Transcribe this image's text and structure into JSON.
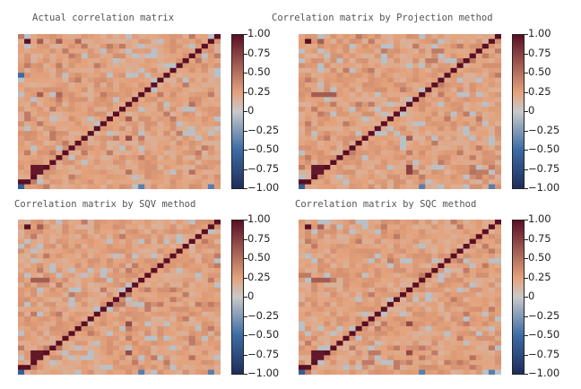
{
  "chart_data": [
    {
      "type": "heatmap",
      "title": "Actual correlation matrix",
      "n": 32,
      "colorbar_range": [
        -1.0,
        1.0
      ],
      "colorbar_ticks": [
        "1.00",
        "0.75",
        "0.50",
        "0.25",
        "0",
        "−0.25",
        "−0.50",
        "−0.75",
        "−1.00"
      ],
      "highlights": [
        {
          "r": 31,
          "c": 0,
          "v": -0.6
        },
        {
          "r": 30,
          "c": 0,
          "v": 1.0
        },
        {
          "r": 1,
          "c": 1,
          "v": 1.0
        },
        {
          "r": 28,
          "c": 2,
          "v": 0.95
        },
        {
          "r": 28,
          "c": 3,
          "v": 0.95
        },
        {
          "r": 27,
          "c": 2,
          "v": 0.95
        },
        {
          "r": 27,
          "c": 3,
          "v": 0.95
        },
        {
          "r": 1,
          "c": 3,
          "v": 0.6
        },
        {
          "r": 1,
          "c": 6,
          "v": 0.6
        },
        {
          "r": 1,
          "c": 9,
          "v": 0.55
        },
        {
          "r": 12,
          "c": 3,
          "v": 0.6
        },
        {
          "r": 12,
          "c": 6,
          "v": 0.55
        },
        {
          "r": 8,
          "c": 0,
          "v": -0.5
        },
        {
          "r": 21,
          "c": 17,
          "v": 0.7
        },
        {
          "r": 17,
          "c": 17,
          "v": 0.6
        },
        {
          "r": 28,
          "c": 17,
          "v": 0.5
        },
        {
          "r": 14,
          "c": 27,
          "v": 0.5
        },
        {
          "r": 28,
          "c": 27,
          "v": 0.5
        },
        {
          "r": 31,
          "c": 19,
          "v": -0.4
        },
        {
          "r": 31,
          "c": 30,
          "v": -0.4
        }
      ]
    },
    {
      "type": "heatmap",
      "title": "Correlation matrix by Projection method",
      "n": 32,
      "colorbar_range": [
        -1.0,
        1.0
      ],
      "colorbar_ticks": [
        "1.00",
        "0.75",
        "0.50",
        "0.25",
        "0",
        "−0.25",
        "−0.50",
        "−0.75",
        "−1.00"
      ],
      "highlights": [
        {
          "r": 31,
          "c": 0,
          "v": -0.6
        },
        {
          "r": 30,
          "c": 0,
          "v": 1.0
        },
        {
          "r": 1,
          "c": 1,
          "v": 1.0
        },
        {
          "r": 28,
          "c": 2,
          "v": 0.95
        },
        {
          "r": 28,
          "c": 3,
          "v": 0.95
        },
        {
          "r": 27,
          "c": 2,
          "v": 0.95
        },
        {
          "r": 27,
          "c": 3,
          "v": 0.95
        },
        {
          "r": 12,
          "c": 2,
          "v": 0.6
        },
        {
          "r": 12,
          "c": 3,
          "v": 0.6
        },
        {
          "r": 12,
          "c": 4,
          "v": 0.6
        },
        {
          "r": 12,
          "c": 5,
          "v": 0.6
        },
        {
          "r": 1,
          "c": 3,
          "v": 0.6
        },
        {
          "r": 27,
          "c": 17,
          "v": 0.75
        },
        {
          "r": 28,
          "c": 17,
          "v": 0.75
        },
        {
          "r": 21,
          "c": 17,
          "v": 0.6
        },
        {
          "r": 28,
          "c": 27,
          "v": 0.5
        },
        {
          "r": 31,
          "c": 19,
          "v": -0.4
        },
        {
          "r": 31,
          "c": 30,
          "v": -0.4
        }
      ]
    },
    {
      "type": "heatmap",
      "title": "Correlation matrix by SQV method",
      "n": 32,
      "colorbar_range": [
        -1.0,
        1.0
      ],
      "colorbar_ticks": [
        "1.00",
        "0.75",
        "0.50",
        "0.25",
        "0",
        "−0.25",
        "−0.50",
        "−0.75",
        "−1.00"
      ],
      "highlights": [
        {
          "r": 31,
          "c": 0,
          "v": -0.6
        },
        {
          "r": 30,
          "c": 0,
          "v": 1.0
        },
        {
          "r": 1,
          "c": 1,
          "v": 1.0
        },
        {
          "r": 28,
          "c": 2,
          "v": 0.95
        },
        {
          "r": 28,
          "c": 3,
          "v": 0.95
        },
        {
          "r": 27,
          "c": 2,
          "v": 0.95
        },
        {
          "r": 27,
          "c": 3,
          "v": 0.95
        },
        {
          "r": 12,
          "c": 2,
          "v": 0.6
        },
        {
          "r": 12,
          "c": 3,
          "v": 0.6
        },
        {
          "r": 12,
          "c": 4,
          "v": 0.6
        },
        {
          "r": 1,
          "c": 3,
          "v": 0.6
        },
        {
          "r": 21,
          "c": 17,
          "v": 0.7
        },
        {
          "r": 27,
          "c": 17,
          "v": 0.7
        },
        {
          "r": 28,
          "c": 27,
          "v": 0.5
        },
        {
          "r": 31,
          "c": 19,
          "v": -0.4
        },
        {
          "r": 31,
          "c": 30,
          "v": -0.4
        }
      ]
    },
    {
      "type": "heatmap",
      "title": "Correlation matrix by SQC method",
      "n": 32,
      "colorbar_range": [
        -1.0,
        1.0
      ],
      "colorbar_ticks": [
        "1.00",
        "0.75",
        "0.50",
        "0.25",
        "0",
        "−0.25",
        "−0.50",
        "−0.75",
        "−1.00"
      ],
      "highlights": [
        {
          "r": 31,
          "c": 0,
          "v": -0.6
        },
        {
          "r": 30,
          "c": 0,
          "v": 1.0
        },
        {
          "r": 1,
          "c": 1,
          "v": 1.0
        },
        {
          "r": 28,
          "c": 2,
          "v": 0.95
        },
        {
          "r": 28,
          "c": 3,
          "v": 0.95
        },
        {
          "r": 27,
          "c": 2,
          "v": 0.95
        },
        {
          "r": 27,
          "c": 3,
          "v": 0.95
        },
        {
          "r": 12,
          "c": 2,
          "v": 0.6
        },
        {
          "r": 12,
          "c": 3,
          "v": 0.6
        },
        {
          "r": 12,
          "c": 4,
          "v": 0.6
        },
        {
          "r": 1,
          "c": 3,
          "v": 0.6
        },
        {
          "r": 21,
          "c": 17,
          "v": 0.7
        },
        {
          "r": 27,
          "c": 17,
          "v": 0.7
        },
        {
          "r": 28,
          "c": 27,
          "v": 0.5
        },
        {
          "r": 31,
          "c": 19,
          "v": -0.4
        },
        {
          "r": 31,
          "c": 30,
          "v": -0.4
        }
      ]
    }
  ],
  "colors": {
    "stops": [
      "#1f2d5a",
      "#3b6ba5",
      "#c9c9c9",
      "#e4a27c",
      "#5a0f24"
    ],
    "background_value": 0.25
  }
}
